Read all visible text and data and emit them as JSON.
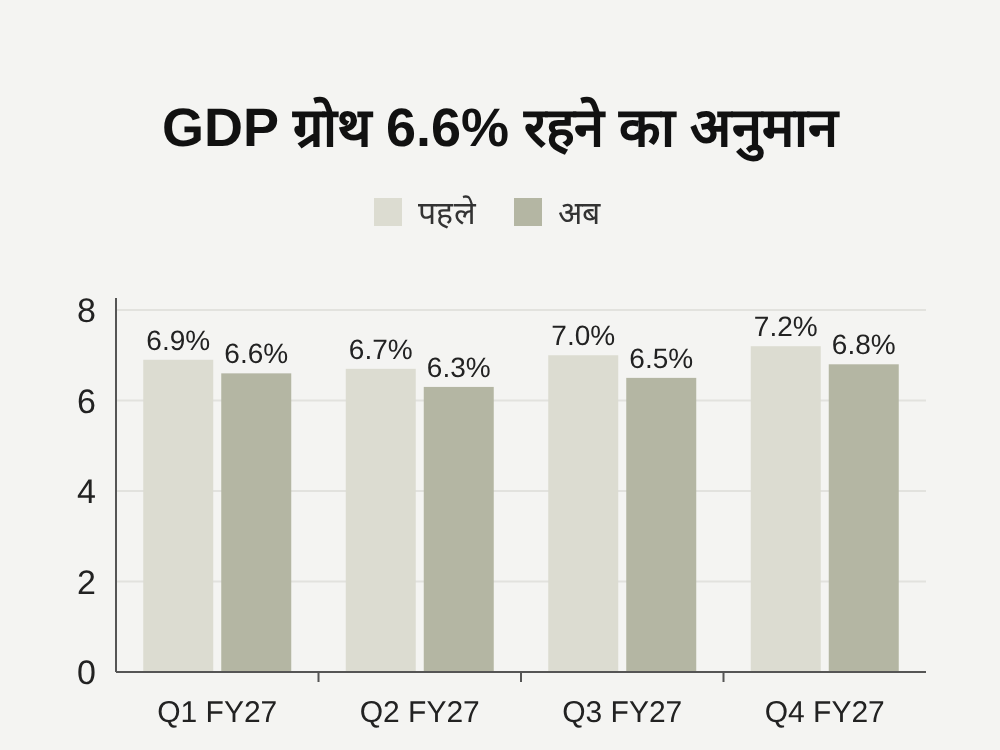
{
  "chart_data": {
    "type": "bar",
    "title": "GDP ग्रोथ 6.6% रहने का अनुमान",
    "categories": [
      "Q1 FY27",
      "Q2 FY27",
      "Q3 FY27",
      "Q4 FY27"
    ],
    "series": [
      {
        "name": "पहले",
        "color": "#dcdcd1",
        "values": [
          6.9,
          6.7,
          7.0,
          7.2
        ],
        "value_labels": [
          "6.9%",
          "6.7%",
          "7.0%",
          "7.2%"
        ]
      },
      {
        "name": "अब",
        "color": "#b4b6a3",
        "values": [
          6.6,
          6.3,
          6.5,
          6.8
        ],
        "value_labels": [
          "6.6%",
          "6.3%",
          "6.5%",
          "6.8%"
        ]
      }
    ],
    "ylim": [
      0,
      8
    ],
    "yticks": [
      0,
      2,
      4,
      6,
      8
    ],
    "grid": "y",
    "legend": "top"
  }
}
